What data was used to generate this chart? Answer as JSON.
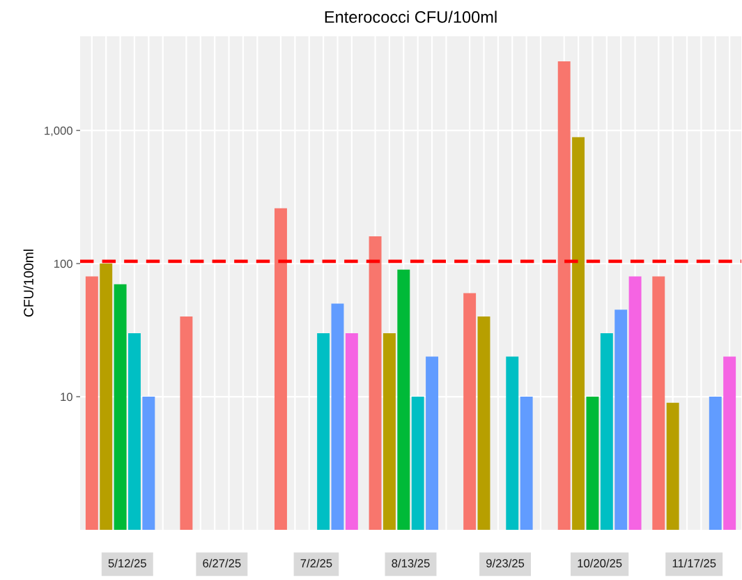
{
  "chart_data": {
    "type": "bar",
    "title": "Enterococci CFU/100ml",
    "ylabel": "CFU/100ml",
    "categories": [
      "5/12/25",
      "6/27/25",
      "7/2/25",
      "8/13/25",
      "9/23/25",
      "10/20/25",
      "11/17/25"
    ],
    "series": [
      {
        "color": "#F8766D",
        "values": [
          80,
          40,
          260,
          160,
          60,
          3300,
          80
        ]
      },
      {
        "color": "#B79F00",
        "values": [
          100,
          null,
          null,
          30,
          40,
          890,
          9
        ]
      },
      {
        "color": "#00BA38",
        "values": [
          70,
          null,
          null,
          90,
          null,
          10,
          null
        ]
      },
      {
        "color": "#00BFC4",
        "values": [
          30,
          null,
          30,
          10,
          20,
          30,
          null
        ]
      },
      {
        "color": "#619CFF",
        "values": [
          10,
          null,
          50,
          20,
          10,
          45,
          10
        ]
      },
      {
        "color": "#F564E3",
        "values": [
          null,
          null,
          30,
          null,
          null,
          80,
          20
        ]
      }
    ],
    "log": true,
    "ylim": [
      1,
      5100
    ],
    "yticks": [
      10,
      100,
      {
        "value": 1000,
        "label": "1,000"
      }
    ],
    "grid": true,
    "ref_lines": [
      {
        "axis": "y",
        "value": 104,
        "color": "#ff0000",
        "line_style": "dashed"
      }
    ]
  }
}
